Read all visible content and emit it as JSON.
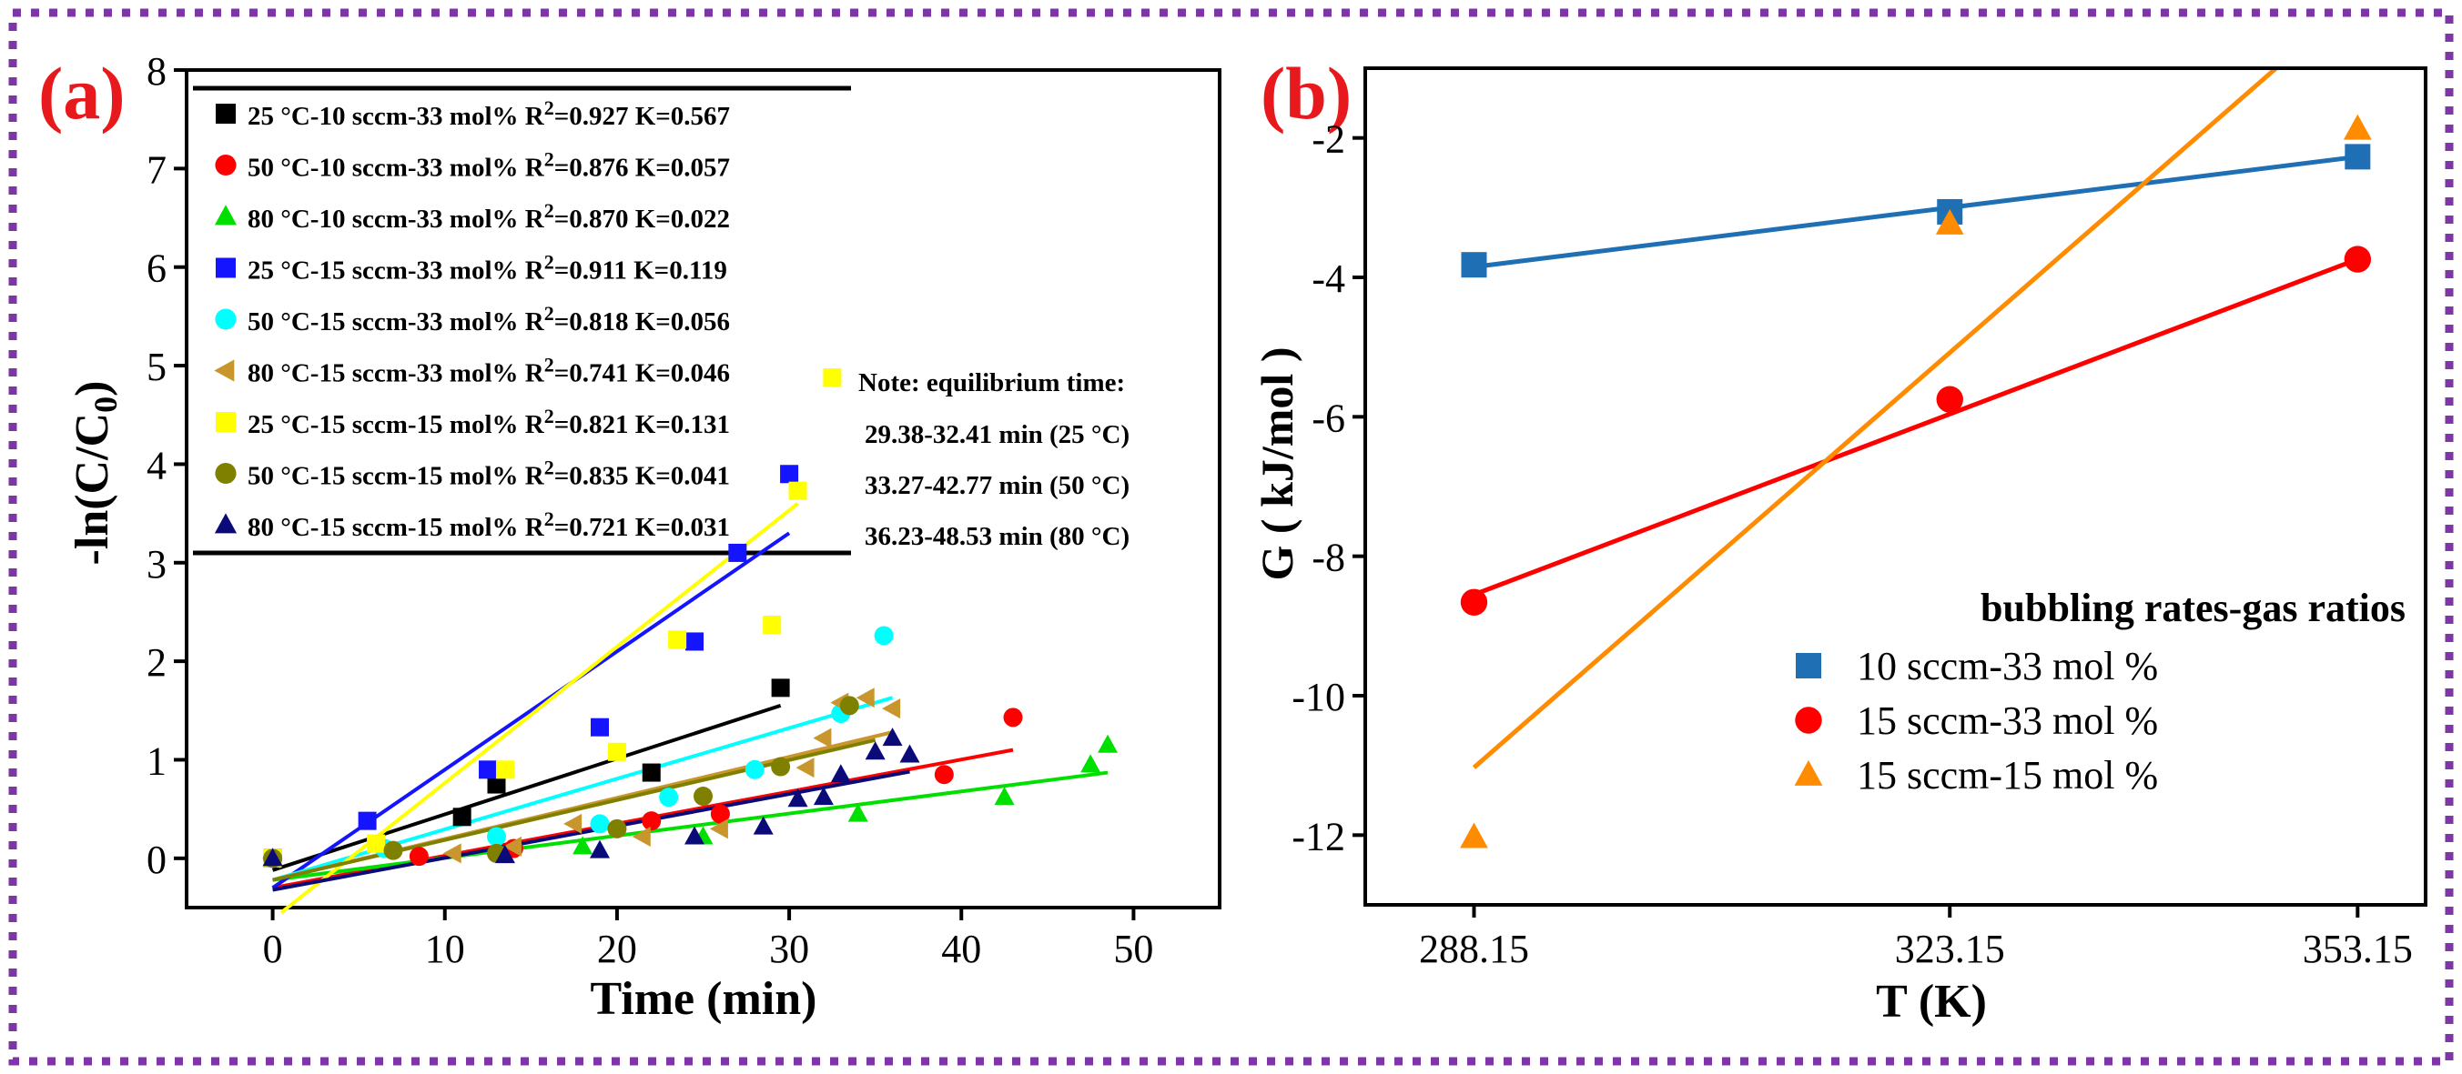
{
  "colors": {
    "frame_border": "#7d35a8",
    "panel_label": "#e8191c",
    "axis": "#000000"
  },
  "chart_data": [
    {
      "panel": "(a)",
      "type": "scatter",
      "xlabel": "Time (min)",
      "ylabel": "-ln(C/C0)",
      "ylabel_main": "-ln(C/C",
      "ylabel_sub": "0",
      "ylabel_end": ")",
      "xlim": [
        -5,
        55
      ],
      "ylim": [
        -0.5,
        8
      ],
      "xticks": [
        0,
        10,
        20,
        30,
        40,
        50
      ],
      "yticks": [
        0,
        1,
        2,
        3,
        4,
        5,
        6,
        7,
        8
      ],
      "grid": false,
      "legend_position": "top-left",
      "series": [
        {
          "name": "25 °C-10 sccm-33 mol%",
          "r2": "0.927",
          "k": "0.567",
          "color": "#000000",
          "marker": "square",
          "x": [
            0,
            11,
            13,
            22,
            29.5
          ],
          "y": [
            0,
            0.42,
            0.75,
            0.87,
            1.73
          ],
          "fit": [
            [
              0,
              -0.12
            ],
            [
              29.5,
              1.55
            ]
          ]
        },
        {
          "name": "50 °C-10 sccm-33 mol%",
          "r2": "0.876",
          "k": "0.057",
          "color": "#ff0000",
          "marker": "circle",
          "x": [
            0,
            8.5,
            14,
            22,
            26,
            39,
            43
          ],
          "y": [
            0,
            0.02,
            0.1,
            0.38,
            0.45,
            0.85,
            1.43
          ],
          "fit": [
            [
              0,
              -0.3
            ],
            [
              43,
              1.1
            ]
          ]
        },
        {
          "name": "80 °C-10 sccm-33 mol%",
          "r2": "0.870",
          "k": "0.022",
          "color": "#00e000",
          "marker": "triangle-up",
          "x": [
            0,
            18,
            25,
            34,
            42.5,
            47.5,
            48.5
          ],
          "y": [
            0,
            0.12,
            0.22,
            0.45,
            0.62,
            0.95,
            1.15
          ],
          "fit": [
            [
              0,
              -0.22
            ],
            [
              48.5,
              0.87
            ]
          ]
        },
        {
          "name": "25 °C-15 sccm-33 mol%",
          "r2": "0.911",
          "k": "0.119",
          "color": "#1414ff",
          "marker": "square",
          "x": [
            0,
            5.5,
            12.5,
            19,
            24.5,
            27,
            30
          ],
          "y": [
            0,
            0.38,
            0.9,
            1.33,
            2.2,
            3.1,
            3.9
          ],
          "fit": [
            [
              0,
              -0.3
            ],
            [
              30,
              3.3
            ]
          ]
        },
        {
          "name": "50 °C-15 sccm-33 mol%",
          "r2": "0.818",
          "k": "0.056",
          "color": "#00ffff",
          "marker": "circle",
          "x": [
            0,
            6.5,
            13,
            19,
            23,
            28,
            33,
            35.5
          ],
          "y": [
            0,
            0.1,
            0.22,
            0.35,
            0.62,
            0.9,
            1.47,
            2.26
          ],
          "fit": [
            [
              0,
              -0.22
            ],
            [
              36,
              1.63
            ]
          ]
        },
        {
          "name": "80 °C-15 sccm-33 mol%",
          "r2": "0.741",
          "k": "0.046",
          "color": "#c8962c",
          "marker": "triangle-left",
          "x": [
            0,
            10.5,
            14,
            17.5,
            21.5,
            26,
            31,
            32,
            33,
            34.5,
            36
          ],
          "y": [
            0,
            0.05,
            0.12,
            0.35,
            0.22,
            0.3,
            0.92,
            1.22,
            1.58,
            1.63,
            1.52
          ],
          "fit": [
            [
              0,
              -0.22
            ],
            [
              36,
              1.28
            ]
          ]
        },
        {
          "name": "25 °C-15 sccm-15 mol%",
          "r2": "0.821",
          "k": "0.131",
          "color": "#ffff00",
          "marker": "square",
          "x": [
            0,
            6,
            13.5,
            20,
            23.5,
            29,
            30.5,
            32.5
          ],
          "y": [
            0,
            0.15,
            0.9,
            1.08,
            2.22,
            2.37,
            3.73,
            4.88
          ],
          "fit": [
            [
              0.5,
              -0.55
            ],
            [
              30.5,
              3.6
            ]
          ]
        },
        {
          "name": "50 °C-15 sccm-15 mol%",
          "r2": "0.835",
          "k": "0.041",
          "color": "#808000",
          "marker": "circle",
          "x": [
            0,
            7,
            13,
            20,
            25,
            29.5,
            33.5
          ],
          "y": [
            0,
            0.08,
            0.05,
            0.3,
            0.63,
            0.93,
            1.55
          ],
          "fit": [
            [
              0,
              -0.22
            ],
            [
              35,
              1.2
            ]
          ]
        },
        {
          "name": "80 °C-15 sccm-15 mol%",
          "r2": "0.721",
          "k": "0.031",
          "color": "#0a0a78",
          "marker": "triangle-up",
          "x": [
            0,
            13.5,
            19,
            24.5,
            28.5,
            30.5,
            32,
            33,
            35,
            36,
            37
          ],
          "y": [
            0,
            0.03,
            0.08,
            0.22,
            0.32,
            0.6,
            0.62,
            0.85,
            1.08,
            1.22,
            1.05
          ],
          "fit": [
            [
              0,
              -0.32
            ],
            [
              37,
              0.88
            ]
          ]
        }
      ],
      "note": {
        "title": "Note: equilibrium time:",
        "lines": [
          "29.38-32.41 min (25 °C)",
          "33.27-42.77 min (50 °C)",
          "36.23-48.53 min (80 °C)"
        ]
      }
    },
    {
      "panel": "(b)",
      "type": "scatter",
      "xlabel": "T (K)",
      "ylabel": "G ( kJ/mol )",
      "categories": [
        "288.15",
        "323.15",
        "353.15"
      ],
      "xlim": [
        280.15,
        358.15
      ],
      "ylim": [
        -13,
        -1
      ],
      "yticks": [
        -2,
        -4,
        -6,
        -8,
        -10,
        -12
      ],
      "grid": false,
      "legend_title": "bubbling rates-gas ratios",
      "legend_position": "bottom-right",
      "series": [
        {
          "name": "10 sccm-33 mol %",
          "color": "#1f6fb4",
          "marker": "square",
          "x": [
            288.15,
            323.15,
            353.15
          ],
          "y": [
            -3.82,
            -3.06,
            -2.27
          ],
          "fit": [
            [
              288.15,
              -3.85
            ],
            [
              353.15,
              -2.27
            ]
          ]
        },
        {
          "name": "15 sccm-33 mol %",
          "color": "#ff0000",
          "marker": "circle",
          "x": [
            288.15,
            323.15,
            353.15
          ],
          "y": [
            -8.66,
            -5.75,
            -3.74
          ],
          "fit": [
            [
              288.15,
              -8.55
            ],
            [
              353.15,
              -3.74
            ]
          ]
        },
        {
          "name": "15 sccm-15 mol %",
          "color": "#ff8c00",
          "marker": "triangle-up",
          "x": [
            288.15,
            323.15,
            353.15
          ],
          "y": [
            -12.03,
            -3.23,
            -1.87
          ],
          "fit": [
            [
              288.15,
              -11.03
            ],
            [
              347.15,
              -1.0
            ]
          ]
        }
      ]
    }
  ]
}
